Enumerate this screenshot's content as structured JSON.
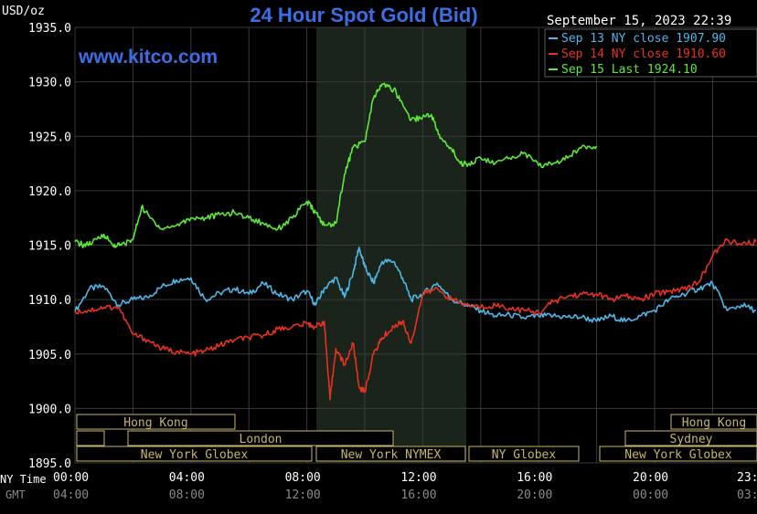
{
  "chart_data": {
    "type": "line",
    "title": "24 Hour Spot Gold (Bid)",
    "ylabel": "USD/oz",
    "website": "www.kitco.com",
    "timestamp": "September 15, 2023 22:39",
    "ylim": [
      1895,
      1935
    ],
    "y_ticks": [
      "1935.0",
      "1930.0",
      "1925.0",
      "1920.0",
      "1915.0",
      "1910.0",
      "1905.0",
      "1900.0",
      "1895.0"
    ],
    "x_ticks_ny": [
      "00:00",
      "04:00",
      "08:00",
      "12:00",
      "16:00",
      "20:00",
      "23:"
    ],
    "x_ticks_gmt": [
      "04:00",
      "08:00",
      "12:00",
      "16:00",
      "20:00",
      "00:00",
      "03:"
    ],
    "ny_time_label": "NY Time",
    "gmt_label": "GMT",
    "legend": [
      {
        "label": "Sep 13 NY close 1907.90",
        "color": "#4fb6e8"
      },
      {
        "label": "Sep 14 NY close 1910.60",
        "color": "#e8321e"
      },
      {
        "label": "Sep 15 Last 1924.10",
        "color": "#5ee83a"
      }
    ],
    "sessions": {
      "hong_kong_1": "Hong Kong",
      "london": "London",
      "ny_globex_1": "New York Globex",
      "ny_nymex": "New York NYMEX",
      "ny_globex_2": "NY Globex",
      "hong_kong_2": "Hong Kong",
      "sydney": "Sydney",
      "ny_globex_3": "New York Globex"
    },
    "series": [
      {
        "name": "Sep 13",
        "color": "#4fb6e8",
        "x": [
          0,
          0.5,
          1,
          1.5,
          2,
          2.5,
          3,
          3.5,
          4,
          4.5,
          5,
          5.5,
          6,
          6.5,
          7,
          7.5,
          8,
          8.3,
          8.6,
          9,
          9.3,
          9.6,
          9.8,
          10,
          10.3,
          10.6,
          11,
          11.3,
          11.6,
          12,
          12.5,
          13,
          13.5,
          14,
          14.5,
          15,
          15.5,
          16,
          16.5,
          17,
          17.5,
          18,
          18.5,
          19,
          19.5,
          20,
          20.5,
          21,
          21.5,
          22,
          22.5,
          23,
          23.5
        ],
        "y": [
          1908.9,
          1911,
          1911.2,
          1909.5,
          1910.0,
          1910.2,
          1911.2,
          1911.8,
          1912.0,
          1910.0,
          1910.6,
          1911.0,
          1910.5,
          1911.5,
          1910.5,
          1910.0,
          1910.8,
          1909.5,
          1911.0,
          1912.0,
          1910.2,
          1912.5,
          1914.8,
          1913.0,
          1911.5,
          1913.5,
          1913.5,
          1912.0,
          1910.0,
          1910.5,
          1911.5,
          1910.0,
          1909.5,
          1909.0,
          1908.5,
          1908.6,
          1908.3,
          1908.5,
          1908.5,
          1908.4,
          1908.4,
          1908.0,
          1908.5,
          1908.0,
          1908.5,
          1909.0,
          1910.0,
          1910.5,
          1911.0,
          1911.5,
          1909.0,
          1909.5,
          1909.0
        ]
      },
      {
        "name": "Sep 14",
        "color": "#e8321e",
        "x": [
          0,
          0.5,
          1,
          1.5,
          2,
          2.5,
          3,
          3.5,
          4,
          4.5,
          5,
          5.5,
          6,
          6.5,
          7,
          7.5,
          8,
          8.3,
          8.6,
          8.8,
          9,
          9.3,
          9.6,
          9.8,
          10,
          10.3,
          10.6,
          11,
          11.3,
          11.6,
          12,
          12.5,
          13,
          13.5,
          14,
          14.5,
          15,
          15.5,
          16,
          16.5,
          17,
          17.5,
          18,
          18.5,
          19,
          19.5,
          20,
          20.5,
          21,
          21.5,
          22,
          22.5,
          23,
          23.5
        ],
        "y": [
          1908.9,
          1909.0,
          1909.3,
          1909.3,
          1906.8,
          1906.3,
          1905.5,
          1905.2,
          1905.0,
          1905.3,
          1905.8,
          1906.3,
          1906.5,
          1906.7,
          1907.3,
          1907.5,
          1907.8,
          1907.5,
          1908.0,
          1900.8,
          1905.5,
          1904.0,
          1906.0,
          1902.0,
          1901.5,
          1905.0,
          1906.5,
          1907.5,
          1908.0,
          1906.0,
          1910.5,
          1911.0,
          1910.0,
          1909.5,
          1909.3,
          1909.5,
          1909.2,
          1909.0,
          1908.8,
          1909.8,
          1910.3,
          1910.5,
          1910.5,
          1910.0,
          1910.3,
          1910.0,
          1910.5,
          1910.8,
          1911.0,
          1911.5,
          1914.0,
          1915.5,
          1915.0,
          1915.3
        ]
      },
      {
        "name": "Sep 15",
        "color": "#5ee83a",
        "x": [
          0,
          0.3,
          0.6,
          1,
          1.3,
          1.6,
          2,
          2.3,
          2.6,
          3,
          3.5,
          4,
          4.5,
          5,
          5.5,
          6,
          6.5,
          7,
          7.5,
          8,
          8.3,
          8.6,
          9,
          9.3,
          9.6,
          10,
          10.3,
          10.6,
          11,
          11.3,
          11.6,
          12,
          12.3,
          12.6,
          13,
          13.3,
          13.6,
          14,
          14.5,
          15,
          15.5,
          16,
          16.5,
          17,
          17.5,
          18
        ],
        "y": [
          1915.3,
          1915.0,
          1915.2,
          1916.0,
          1915.0,
          1915.0,
          1915.5,
          1918.5,
          1917.5,
          1916.5,
          1916.8,
          1917.5,
          1917.5,
          1917.8,
          1918.0,
          1917.5,
          1917.0,
          1916.5,
          1917.5,
          1919.0,
          1918.0,
          1916.8,
          1917.0,
          1921.5,
          1924.0,
          1924.5,
          1928.5,
          1929.8,
          1929.3,
          1928.0,
          1926.5,
          1926.8,
          1927.0,
          1924.8,
          1923.8,
          1922.5,
          1922.5,
          1923.0,
          1922.5,
          1923.0,
          1923.5,
          1922.3,
          1922.5,
          1923.0,
          1924.1,
          1924.1
        ]
      }
    ],
    "grid": true
  }
}
